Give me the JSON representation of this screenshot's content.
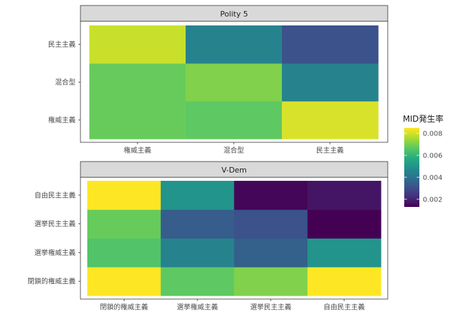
{
  "chart_data": {
    "type": "heatmap",
    "legend": {
      "title": "MID発生率",
      "range": [
        0.0013,
        0.0085
      ],
      "ticks": [
        0.002,
        0.004,
        0.006,
        0.008
      ],
      "tick_labels": [
        "0.002",
        "0.004",
        "0.006",
        "0.008"
      ],
      "colormap": "viridis",
      "placement": "right"
    },
    "panels": [
      {
        "title": "Polity 5",
        "x_categories": [
          "権威主義",
          "混合型",
          "民主主義"
        ],
        "y_categories": [
          "権威主義",
          "混合型",
          "民主主義"
        ],
        "values": [
          [
            0.0068,
            0.0067,
            0.0081
          ],
          [
            0.0068,
            0.0071,
            0.0045
          ],
          [
            0.0079,
            0.0045,
            0.0031
          ]
        ]
      },
      {
        "title": "V-Dem",
        "x_categories": [
          "閉鎖的権威主義",
          "選挙権威主義",
          "選挙民主主義",
          "自由民主主義"
        ],
        "y_categories": [
          "閉鎖的権威主義",
          "選挙権威主義",
          "選挙民主主義",
          "自由民主主義"
        ],
        "values": [
          [
            0.0085,
            0.0067,
            0.0071,
            0.0085
          ],
          [
            0.0065,
            0.0045,
            0.0035,
            0.005
          ],
          [
            0.0068,
            0.0034,
            0.0031,
            0.0013
          ],
          [
            0.0085,
            0.005,
            0.0014,
            0.0017
          ]
        ]
      }
    ]
  }
}
